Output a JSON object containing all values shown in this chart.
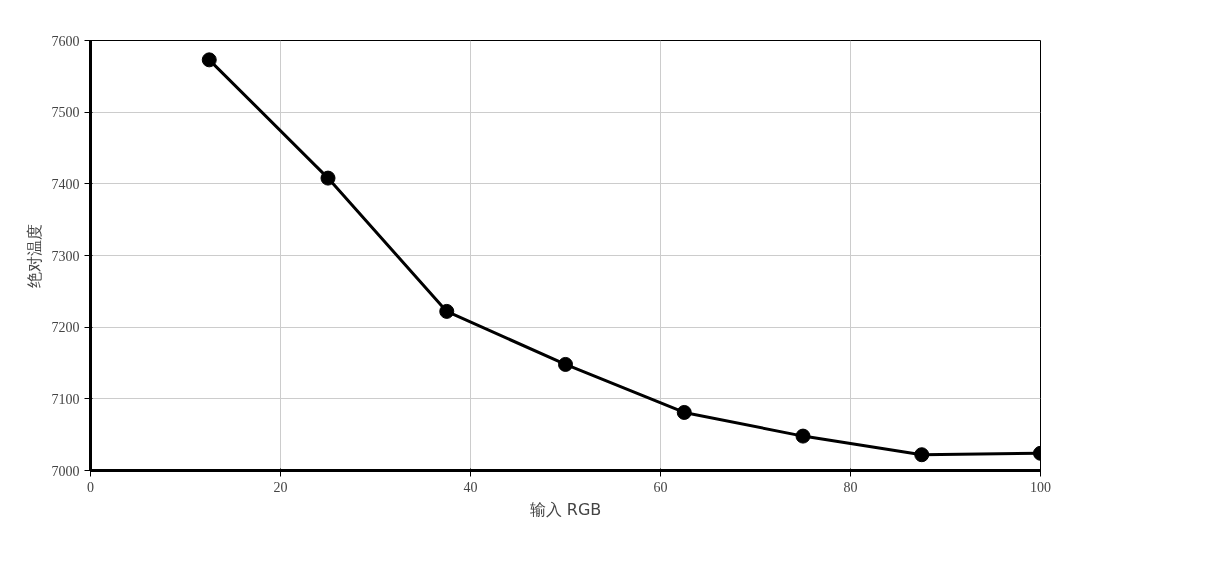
{
  "chart_data": {
    "type": "line",
    "xlabel": "输入 RGB",
    "ylabel": "绝对温度",
    "x": [
      12.5,
      25,
      37.5,
      50,
      62.5,
      75,
      87.5,
      100
    ],
    "series": [
      {
        "color": "#000000",
        "values": [
          7573,
          7408,
          7222,
          7148,
          7081,
          7048,
          7022,
          7024
        ]
      }
    ],
    "xlim": [
      0,
      100
    ],
    "xticks": [
      0,
      20,
      40,
      60,
      80,
      100
    ],
    "ylim": [
      7000,
      7600
    ],
    "yticks": [
      7000,
      7100,
      7200,
      7300,
      7400,
      7500,
      7600
    ],
    "grid": true,
    "marker": "circle",
    "line_style": "solid"
  }
}
